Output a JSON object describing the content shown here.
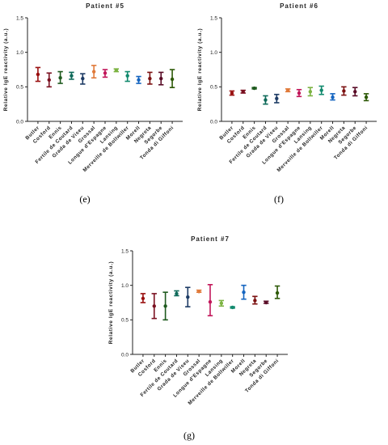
{
  "captions": [
    "(e)",
    "(f)",
    "(g)"
  ],
  "chart_data": [
    {
      "type": "scatter",
      "title": "Patient #5",
      "ylabel": "Relative IgE reactivity (a.u.)",
      "ylim": [
        0,
        1.5
      ],
      "yticks": [
        "0.0",
        "0.5",
        "1.0",
        "1.5"
      ],
      "grid": false,
      "categories": [
        "Butler",
        "Cosford",
        "Ennis",
        "Fertile de Coutard",
        "Grada de Viseu",
        "Grossal",
        "Longue d'Espagne",
        "Lansing",
        "Merveille de Bollwiller",
        "Morell",
        "Negreta",
        "Segorbe",
        "Tonda di Giffoni"
      ],
      "mean": [
        0.68,
        0.6,
        0.63,
        0.66,
        0.62,
        0.72,
        0.7,
        0.74,
        0.66,
        0.6,
        0.62,
        0.62,
        0.61
      ],
      "low": [
        0.58,
        0.5,
        0.55,
        0.61,
        0.54,
        0.63,
        0.64,
        0.72,
        0.58,
        0.55,
        0.54,
        0.53,
        0.49
      ],
      "high": [
        0.78,
        0.7,
        0.72,
        0.71,
        0.69,
        0.81,
        0.75,
        0.76,
        0.72,
        0.65,
        0.71,
        0.71,
        0.75
      ],
      "colors": [
        "#9a1010",
        "#7a1020",
        "#1e5a1e",
        "#0f6a5a",
        "#1c3a64",
        "#e07a3a",
        "#c2185b",
        "#7cb342",
        "#128a6e",
        "#1565c0",
        "#7b1010",
        "#5a0d28",
        "#2e5a08"
      ]
    },
    {
      "type": "scatter",
      "title": "Patient #6",
      "ylabel": "Relative IgE reactivity (a.u.)",
      "ylim": [
        0,
        1.5
      ],
      "yticks": [
        "0.0",
        "0.5",
        "1.0",
        "1.5"
      ],
      "grid": false,
      "categories": [
        "Butler",
        "Cosford",
        "Ennis",
        "Fertile de Coutard",
        "Grada de Viseu",
        "Grossal",
        "Longue d'Espagne",
        "Lansing",
        "Merveille de Bollwiller",
        "Morell",
        "Negreta",
        "Segorbe",
        "Tonda di Giffoni"
      ],
      "mean": [
        0.41,
        0.43,
        0.48,
        0.31,
        0.33,
        0.45,
        0.41,
        0.43,
        0.45,
        0.35,
        0.44,
        0.43,
        0.35
      ],
      "low": [
        0.38,
        0.41,
        0.47,
        0.25,
        0.27,
        0.43,
        0.36,
        0.37,
        0.39,
        0.31,
        0.38,
        0.37,
        0.3
      ],
      "high": [
        0.44,
        0.45,
        0.49,
        0.37,
        0.39,
        0.47,
        0.46,
        0.49,
        0.51,
        0.4,
        0.5,
        0.49,
        0.4
      ],
      "colors": [
        "#9a1010",
        "#7a1020",
        "#1e5a1e",
        "#0f6a5a",
        "#1c3a64",
        "#e07a3a",
        "#c2185b",
        "#7cb342",
        "#128a6e",
        "#1565c0",
        "#7b1010",
        "#5a0d28",
        "#2e5a08"
      ]
    },
    {
      "type": "scatter",
      "title": "Patient #7",
      "ylabel": "Relative IgE reactivity (a.u.)",
      "ylim": [
        0,
        1.5
      ],
      "yticks": [
        "0.0",
        "0.5",
        "1.0",
        "1.5"
      ],
      "grid": false,
      "categories": [
        "Butler",
        "Cosford",
        "Ennis",
        "Fertile de Coutard",
        "Grada de Viseu",
        "Grossal",
        "Longue d'Espagne",
        "Lansing",
        "Merveille de Bollwiller",
        "Morell",
        "Negreta",
        "Segorbe",
        "Tonda di Giffoni"
      ],
      "mean": [
        0.81,
        0.7,
        0.7,
        0.88,
        0.83,
        0.91,
        0.76,
        0.74,
        0.68,
        0.9,
        0.78,
        0.75,
        0.89
      ],
      "low": [
        0.75,
        0.52,
        0.5,
        0.85,
        0.69,
        0.9,
        0.56,
        0.7,
        0.67,
        0.8,
        0.73,
        0.74,
        0.81
      ],
      "high": [
        0.88,
        0.88,
        0.9,
        0.92,
        0.97,
        0.93,
        1.01,
        0.78,
        0.69,
        1.0,
        0.84,
        0.77,
        0.99
      ],
      "colors": [
        "#9a1010",
        "#7a1020",
        "#1e5a1e",
        "#0f6a5a",
        "#1c3a64",
        "#e07a3a",
        "#c2185b",
        "#7cb342",
        "#128a6e",
        "#1565c0",
        "#7b1010",
        "#5a0d28",
        "#2e5a08"
      ]
    }
  ]
}
